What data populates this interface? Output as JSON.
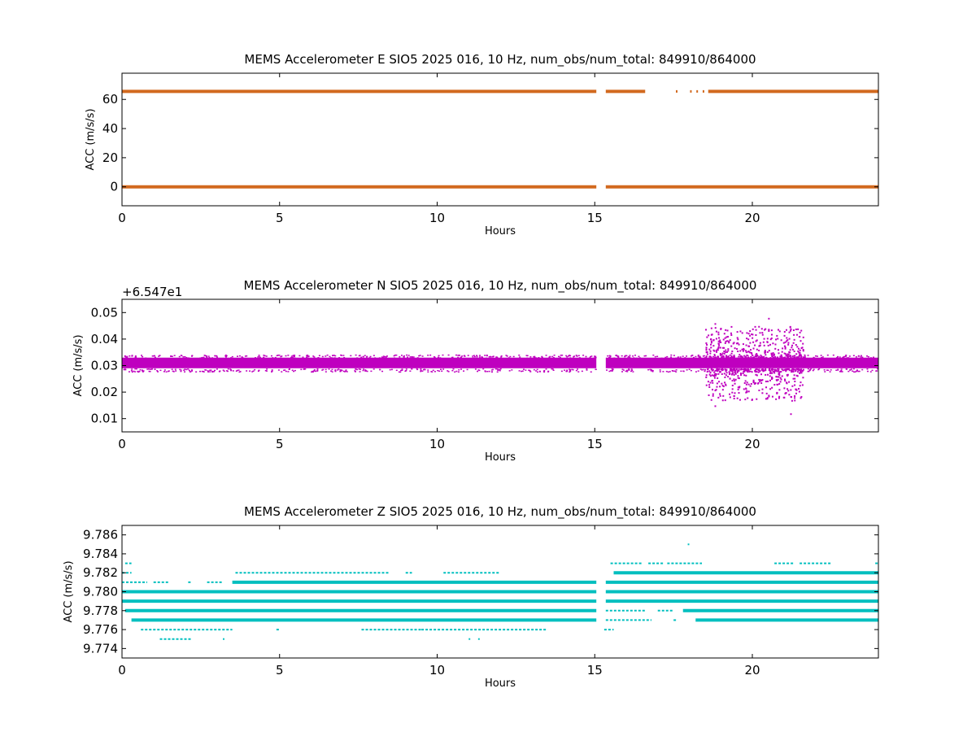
{
  "chart_data": [
    {
      "type": "scatter",
      "title": "MEMS Accelerometer E SIO5 2025 016, 10 Hz, num_obs/num_total: 849910/864000",
      "xlabel": "Hours",
      "ylabel": "ACC (m/s/s)",
      "xlim": [
        0,
        24
      ],
      "ylim": [
        -13,
        78
      ],
      "xticks": [
        0,
        5,
        10,
        15,
        20
      ],
      "yticks": [
        0,
        20,
        40,
        60
      ],
      "offset_text": "",
      "color": "#d2691e",
      "series": [
        {
          "segments": [
            [
              0,
              15.05,
              0
            ],
            [
              15.35,
              24,
              0
            ]
          ]
        },
        {
          "segments": [
            [
              0,
              15.05,
              65.5
            ],
            [
              15.35,
              16.6,
              65.5
            ],
            [
              18.6,
              24,
              65.5
            ]
          ],
          "sparse_x": [
            17.6,
            18.05,
            18.25,
            18.45
          ]
        }
      ]
    },
    {
      "type": "scatter",
      "title": "MEMS Accelerometer N SIO5 2025 016, 10 Hz, num_obs/num_total: 849910/864000",
      "xlabel": "Hours",
      "ylabel": "ACC (m/s/s)",
      "xlim": [
        0,
        24
      ],
      "ylim": [
        0.005,
        0.055
      ],
      "xticks": [
        0,
        5,
        10,
        15,
        20
      ],
      "yticks": [
        0.01,
        0.02,
        0.03,
        0.04,
        0.05
      ],
      "ytick_labels": [
        "0.01",
        "0.02",
        "0.03",
        "0.04",
        "0.05"
      ],
      "offset_text": "+6.547e1",
      "color": "#bf00bf",
      "band": {
        "center": 0.031,
        "low": 0.029,
        "high": 0.033,
        "gap": [
          15.05,
          15.35
        ]
      },
      "noisy_range": [
        18.5,
        21.6
      ],
      "extremes": [
        [
          18.8,
          0.046
        ],
        [
          18.8,
          0.015
        ],
        [
          19.5,
          0.043
        ],
        [
          20.5,
          0.048
        ],
        [
          20.5,
          0.019
        ],
        [
          21.2,
          0.044
        ],
        [
          21.2,
          0.012
        ]
      ]
    },
    {
      "type": "scatter",
      "title": "MEMS Accelerometer Z SIO5 2025 016, 10 Hz, num_obs/num_total: 849910/864000",
      "xlabel": "Hours",
      "ylabel": "ACC (m/s/s)",
      "xlim": [
        0,
        24
      ],
      "ylim": [
        9.773,
        9.787
      ],
      "xticks": [
        0,
        5,
        10,
        15,
        20
      ],
      "yticks": [
        9.774,
        9.776,
        9.778,
        9.78,
        9.782,
        9.784,
        9.786
      ],
      "ytick_labels": [
        "9.774",
        "9.776",
        "9.778",
        "9.780",
        "9.782",
        "9.784",
        "9.786"
      ],
      "offset_text": "",
      "color": "#00bfbf",
      "levels": [
        {
          "y": 9.775,
          "segments": [
            [
              1.2,
              2.2
            ],
            [
              3.2,
              3.25
            ],
            [
              11.0,
              11.05
            ],
            [
              11.3,
              11.35
            ]
          ]
        },
        {
          "y": 9.776,
          "segments": [
            [
              0.6,
              3.5
            ],
            [
              4.9,
              5.0
            ],
            [
              7.6,
              9.5
            ],
            [
              9.5,
              13.5
            ],
            [
              15.3,
              15.6
            ]
          ]
        },
        {
          "y": 9.777,
          "segments": [
            [
              0.3,
              15.05
            ],
            [
              15.35,
              16.8
            ],
            [
              17.5,
              17.6
            ],
            [
              18.2,
              24.0
            ]
          ]
        },
        {
          "y": 9.778,
          "segments": [
            [
              0.1,
              15.05
            ],
            [
              15.35,
              16.6
            ],
            [
              17.0,
              17.5
            ],
            [
              17.8,
              24.0
            ]
          ]
        },
        {
          "y": 9.779,
          "segments": [
            [
              0,
              15.05
            ],
            [
              15.35,
              24
            ]
          ]
        },
        {
          "y": 9.78,
          "segments": [
            [
              0,
              15.05
            ],
            [
              15.35,
              24
            ]
          ]
        },
        {
          "y": 9.781,
          "segments": [
            [
              0,
              0.8
            ],
            [
              1.0,
              1.5
            ],
            [
              2.1,
              2.2
            ],
            [
              2.7,
              3.2
            ],
            [
              3.5,
              15.05
            ],
            [
              15.35,
              24
            ]
          ]
        },
        {
          "y": 9.782,
          "segments": [
            [
              0,
              0.3
            ],
            [
              3.6,
              8.5
            ],
            [
              9.0,
              9.2
            ],
            [
              10.2,
              12.0
            ],
            [
              15.6,
              24
            ]
          ]
        },
        {
          "y": 9.783,
          "segments": [
            [
              0.1,
              0.3
            ],
            [
              15.5,
              16.5
            ],
            [
              16.7,
              17.2
            ],
            [
              17.3,
              18.4
            ],
            [
              20.7,
              21.3
            ],
            [
              21.5,
              22.5
            ],
            [
              23.9,
              24
            ]
          ]
        },
        {
          "y": 9.785,
          "segments": [
            [
              17.95,
              18.0
            ]
          ]
        }
      ]
    }
  ]
}
